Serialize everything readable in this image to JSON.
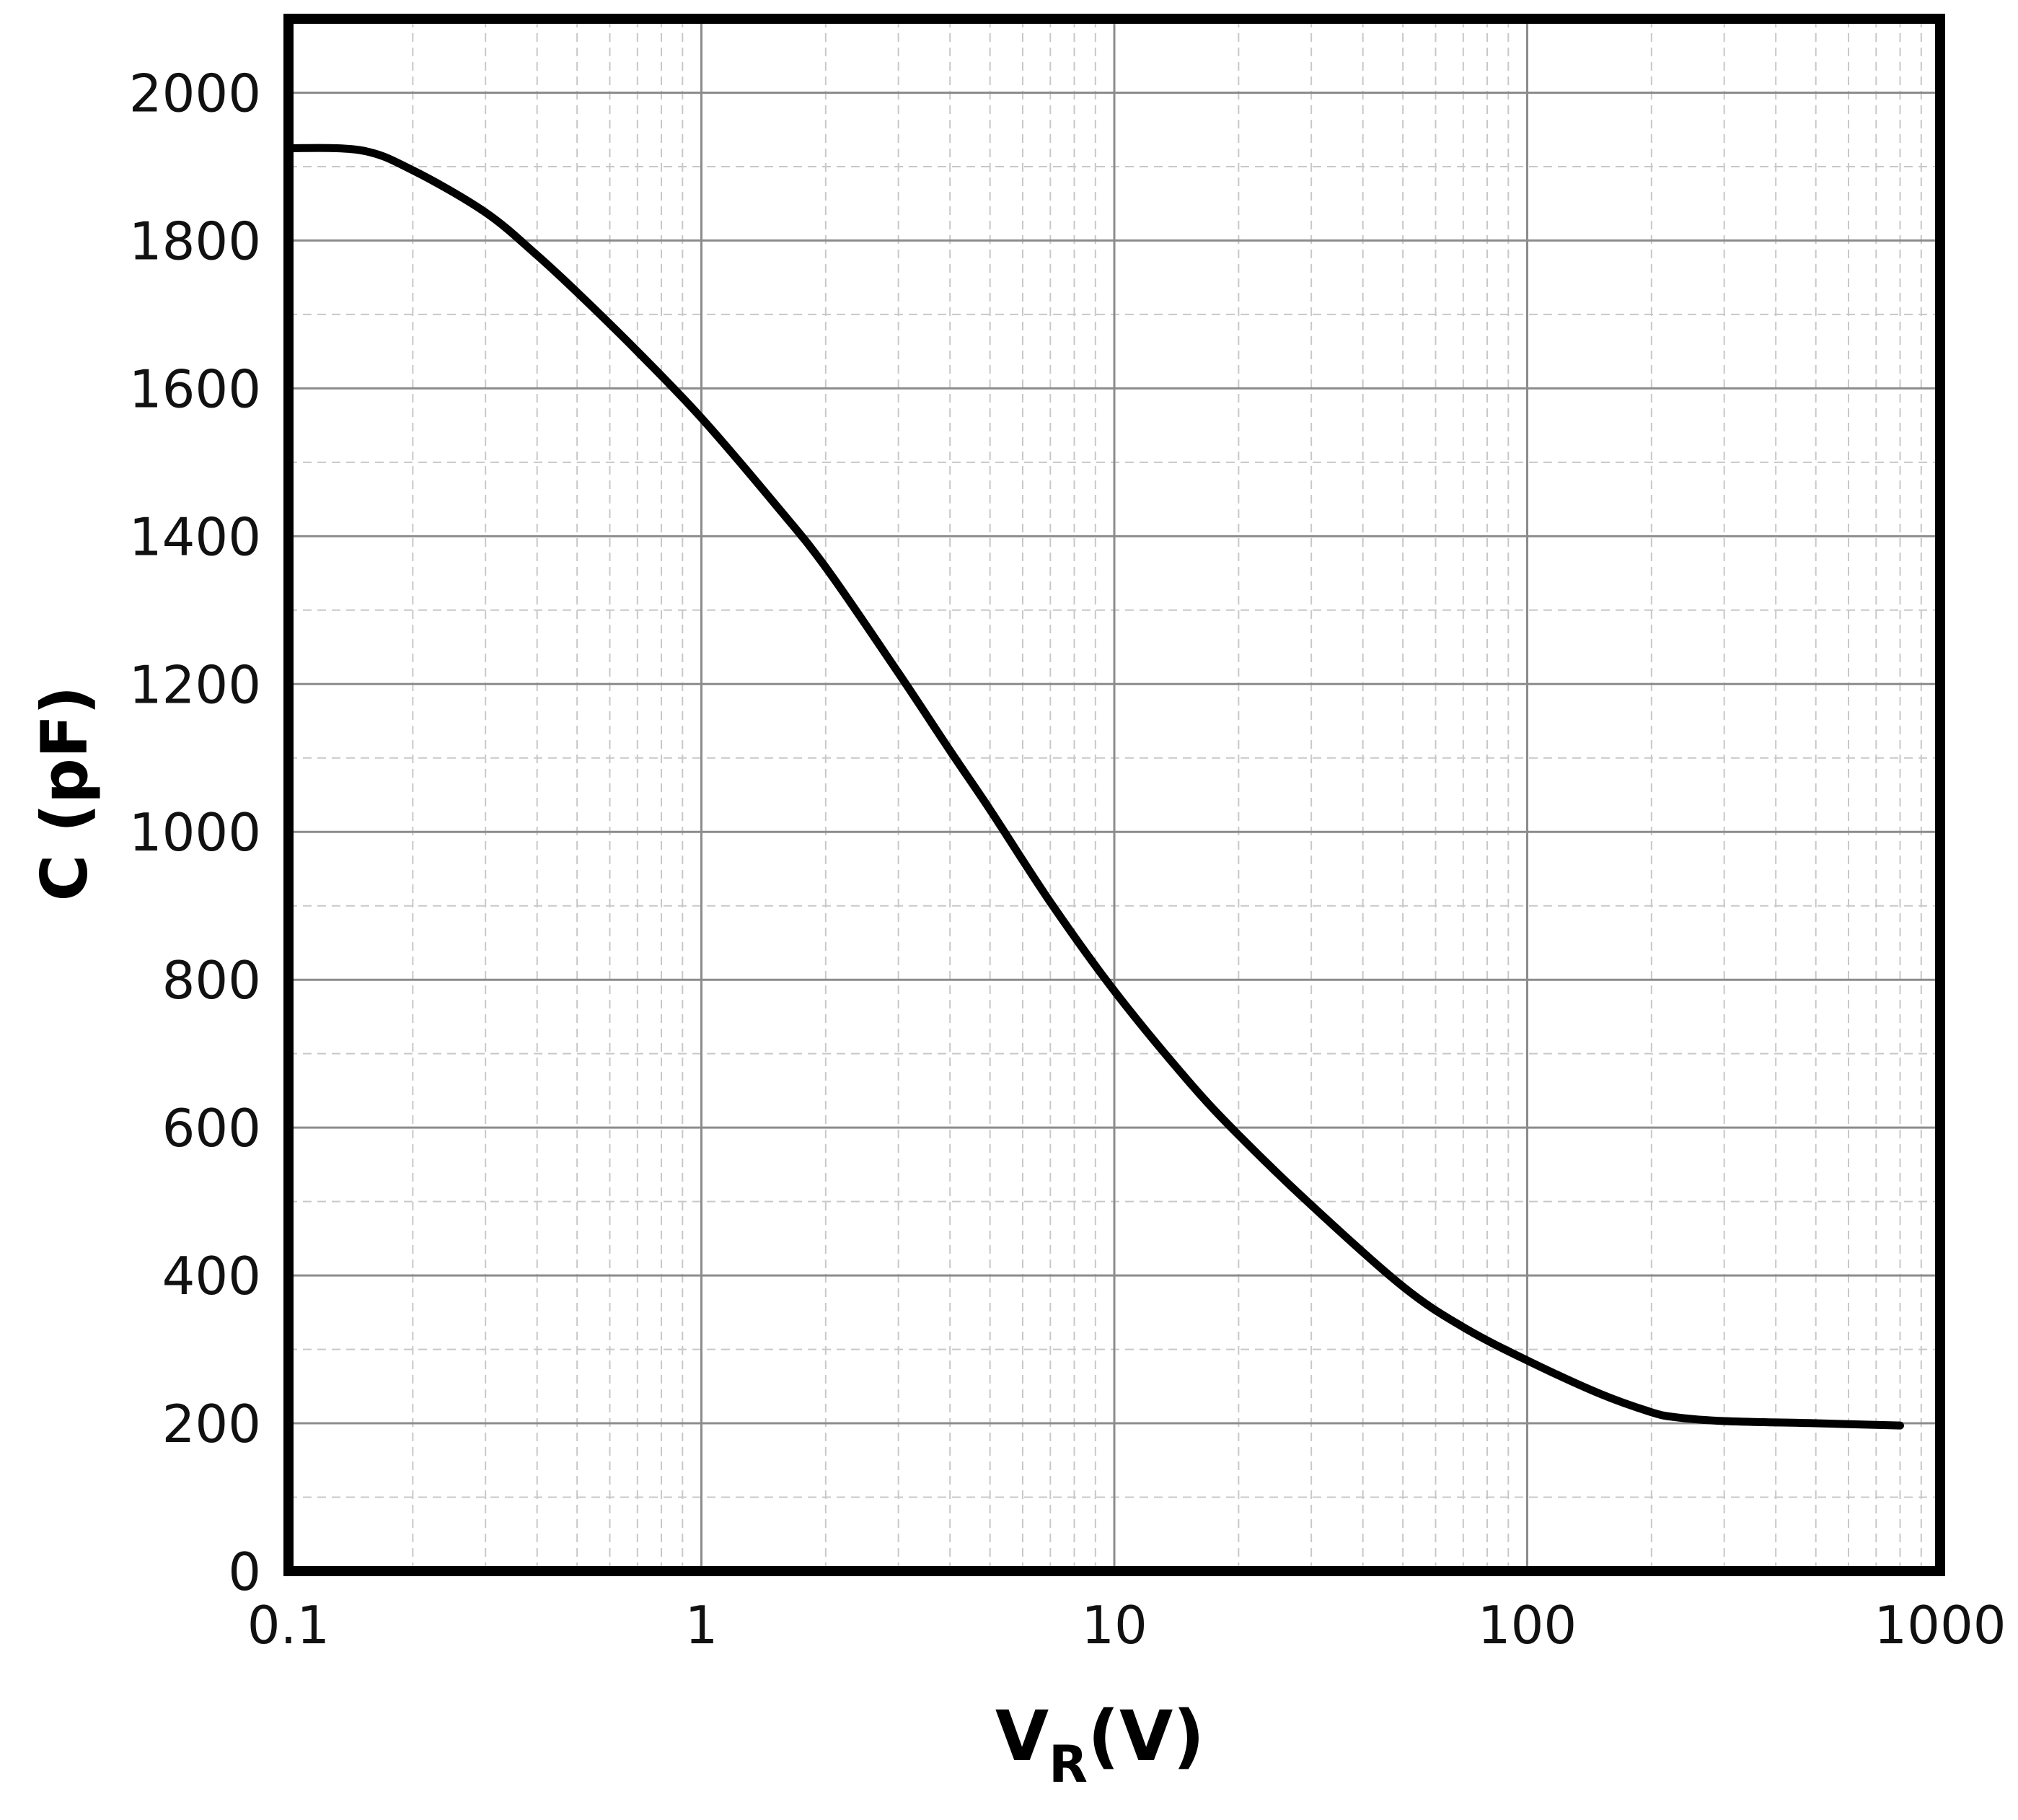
{
  "chart_data": {
    "type": "line",
    "xscale": "log",
    "xlim": [
      0.1,
      1000
    ],
    "ylim": [
      0,
      2100
    ],
    "grid": true,
    "xticks": [
      "0.1",
      "1",
      "10",
      "100",
      "1000"
    ],
    "yticks": [
      "0",
      "200",
      "400",
      "600",
      "800",
      "1000",
      "1200",
      "1400",
      "1600",
      "1800",
      "2000"
    ],
    "xlabel": {
      "main": "V",
      "sub": "R",
      "unit": "(V)"
    },
    "ylabel": "C (pF)",
    "series": [
      {
        "color": "#000000",
        "points": [
          [
            0.1,
            1925
          ],
          [
            0.15,
            1922
          ],
          [
            0.2,
            1895
          ],
          [
            0.3,
            1838
          ],
          [
            0.4,
            1780
          ],
          [
            0.5,
            1730
          ],
          [
            0.7,
            1650
          ],
          [
            1,
            1560
          ],
          [
            1.5,
            1445
          ],
          [
            2,
            1358
          ],
          [
            3,
            1215
          ],
          [
            4,
            1110
          ],
          [
            5,
            1030
          ],
          [
            7,
            905
          ],
          [
            10,
            785
          ],
          [
            15,
            665
          ],
          [
            20,
            590
          ],
          [
            30,
            495
          ],
          [
            50,
            385
          ],
          [
            70,
            330
          ],
          [
            100,
            285
          ],
          [
            150,
            240
          ],
          [
            200,
            215
          ],
          [
            230,
            208
          ],
          [
            300,
            203
          ],
          [
            500,
            200
          ],
          [
            800,
            197
          ]
        ]
      }
    ]
  }
}
